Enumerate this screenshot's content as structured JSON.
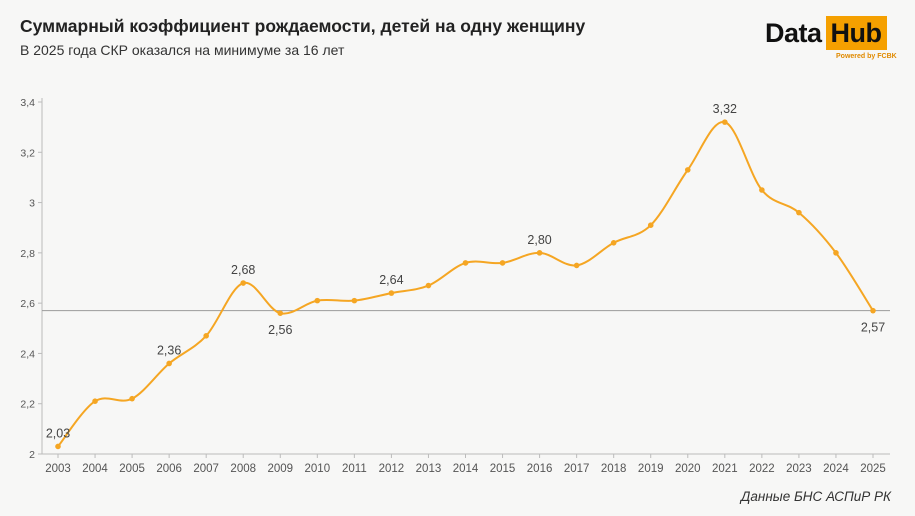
{
  "header": {
    "title": "Суммарный коэффициент рождаемости, детей на одну женщину",
    "subtitle": "В 2025 года СКР оказался на минимуме за 16 лет"
  },
  "logo": {
    "word1": "Data",
    "word2": "Hub",
    "powered": "Powered by FCBK",
    "accent_color": "#f5a000"
  },
  "source": "Данные БНС АСПиР РК",
  "chart_data": {
    "type": "line",
    "x": [
      "2003",
      "2004",
      "2005",
      "2006",
      "2007",
      "2008",
      "2009",
      "2010",
      "2011",
      "2012",
      "2013",
      "2014",
      "2015",
      "2016",
      "2017",
      "2018",
      "2019",
      "2020",
      "2021",
      "2022",
      "2023",
      "2024",
      "2025"
    ],
    "series": [
      {
        "values": [
          2.03,
          2.21,
          2.22,
          2.36,
          2.47,
          2.68,
          2.56,
          2.61,
          2.61,
          2.64,
          2.67,
          2.76,
          2.76,
          2.8,
          2.75,
          2.84,
          2.91,
          3.13,
          3.32,
          3.05,
          2.96,
          2.8,
          2.57
        ],
        "color": "#f5a623"
      }
    ],
    "data_labels": [
      {
        "x": "2003",
        "text": "2,03",
        "position": "above"
      },
      {
        "x": "2006",
        "text": "2,36",
        "position": "above"
      },
      {
        "x": "2008",
        "text": "2,68",
        "position": "above"
      },
      {
        "x": "2009",
        "text": "2,56",
        "position": "below"
      },
      {
        "x": "2012",
        "text": "2,64",
        "position": "above"
      },
      {
        "x": "2016",
        "text": "2,80",
        "position": "above"
      },
      {
        "x": "2021",
        "text": "3,32",
        "position": "above"
      },
      {
        "x": "2025",
        "text": "2,57",
        "position": "below"
      }
    ],
    "y_ticks": [
      "2",
      "2,2",
      "2,4",
      "2,6",
      "2,8",
      "3",
      "3,2",
      "3,4"
    ],
    "ylim": [
      2,
      3.4
    ],
    "reference_line": {
      "value": 2.57,
      "color": "#9a9a9a"
    },
    "grid": false,
    "legend": "none"
  }
}
